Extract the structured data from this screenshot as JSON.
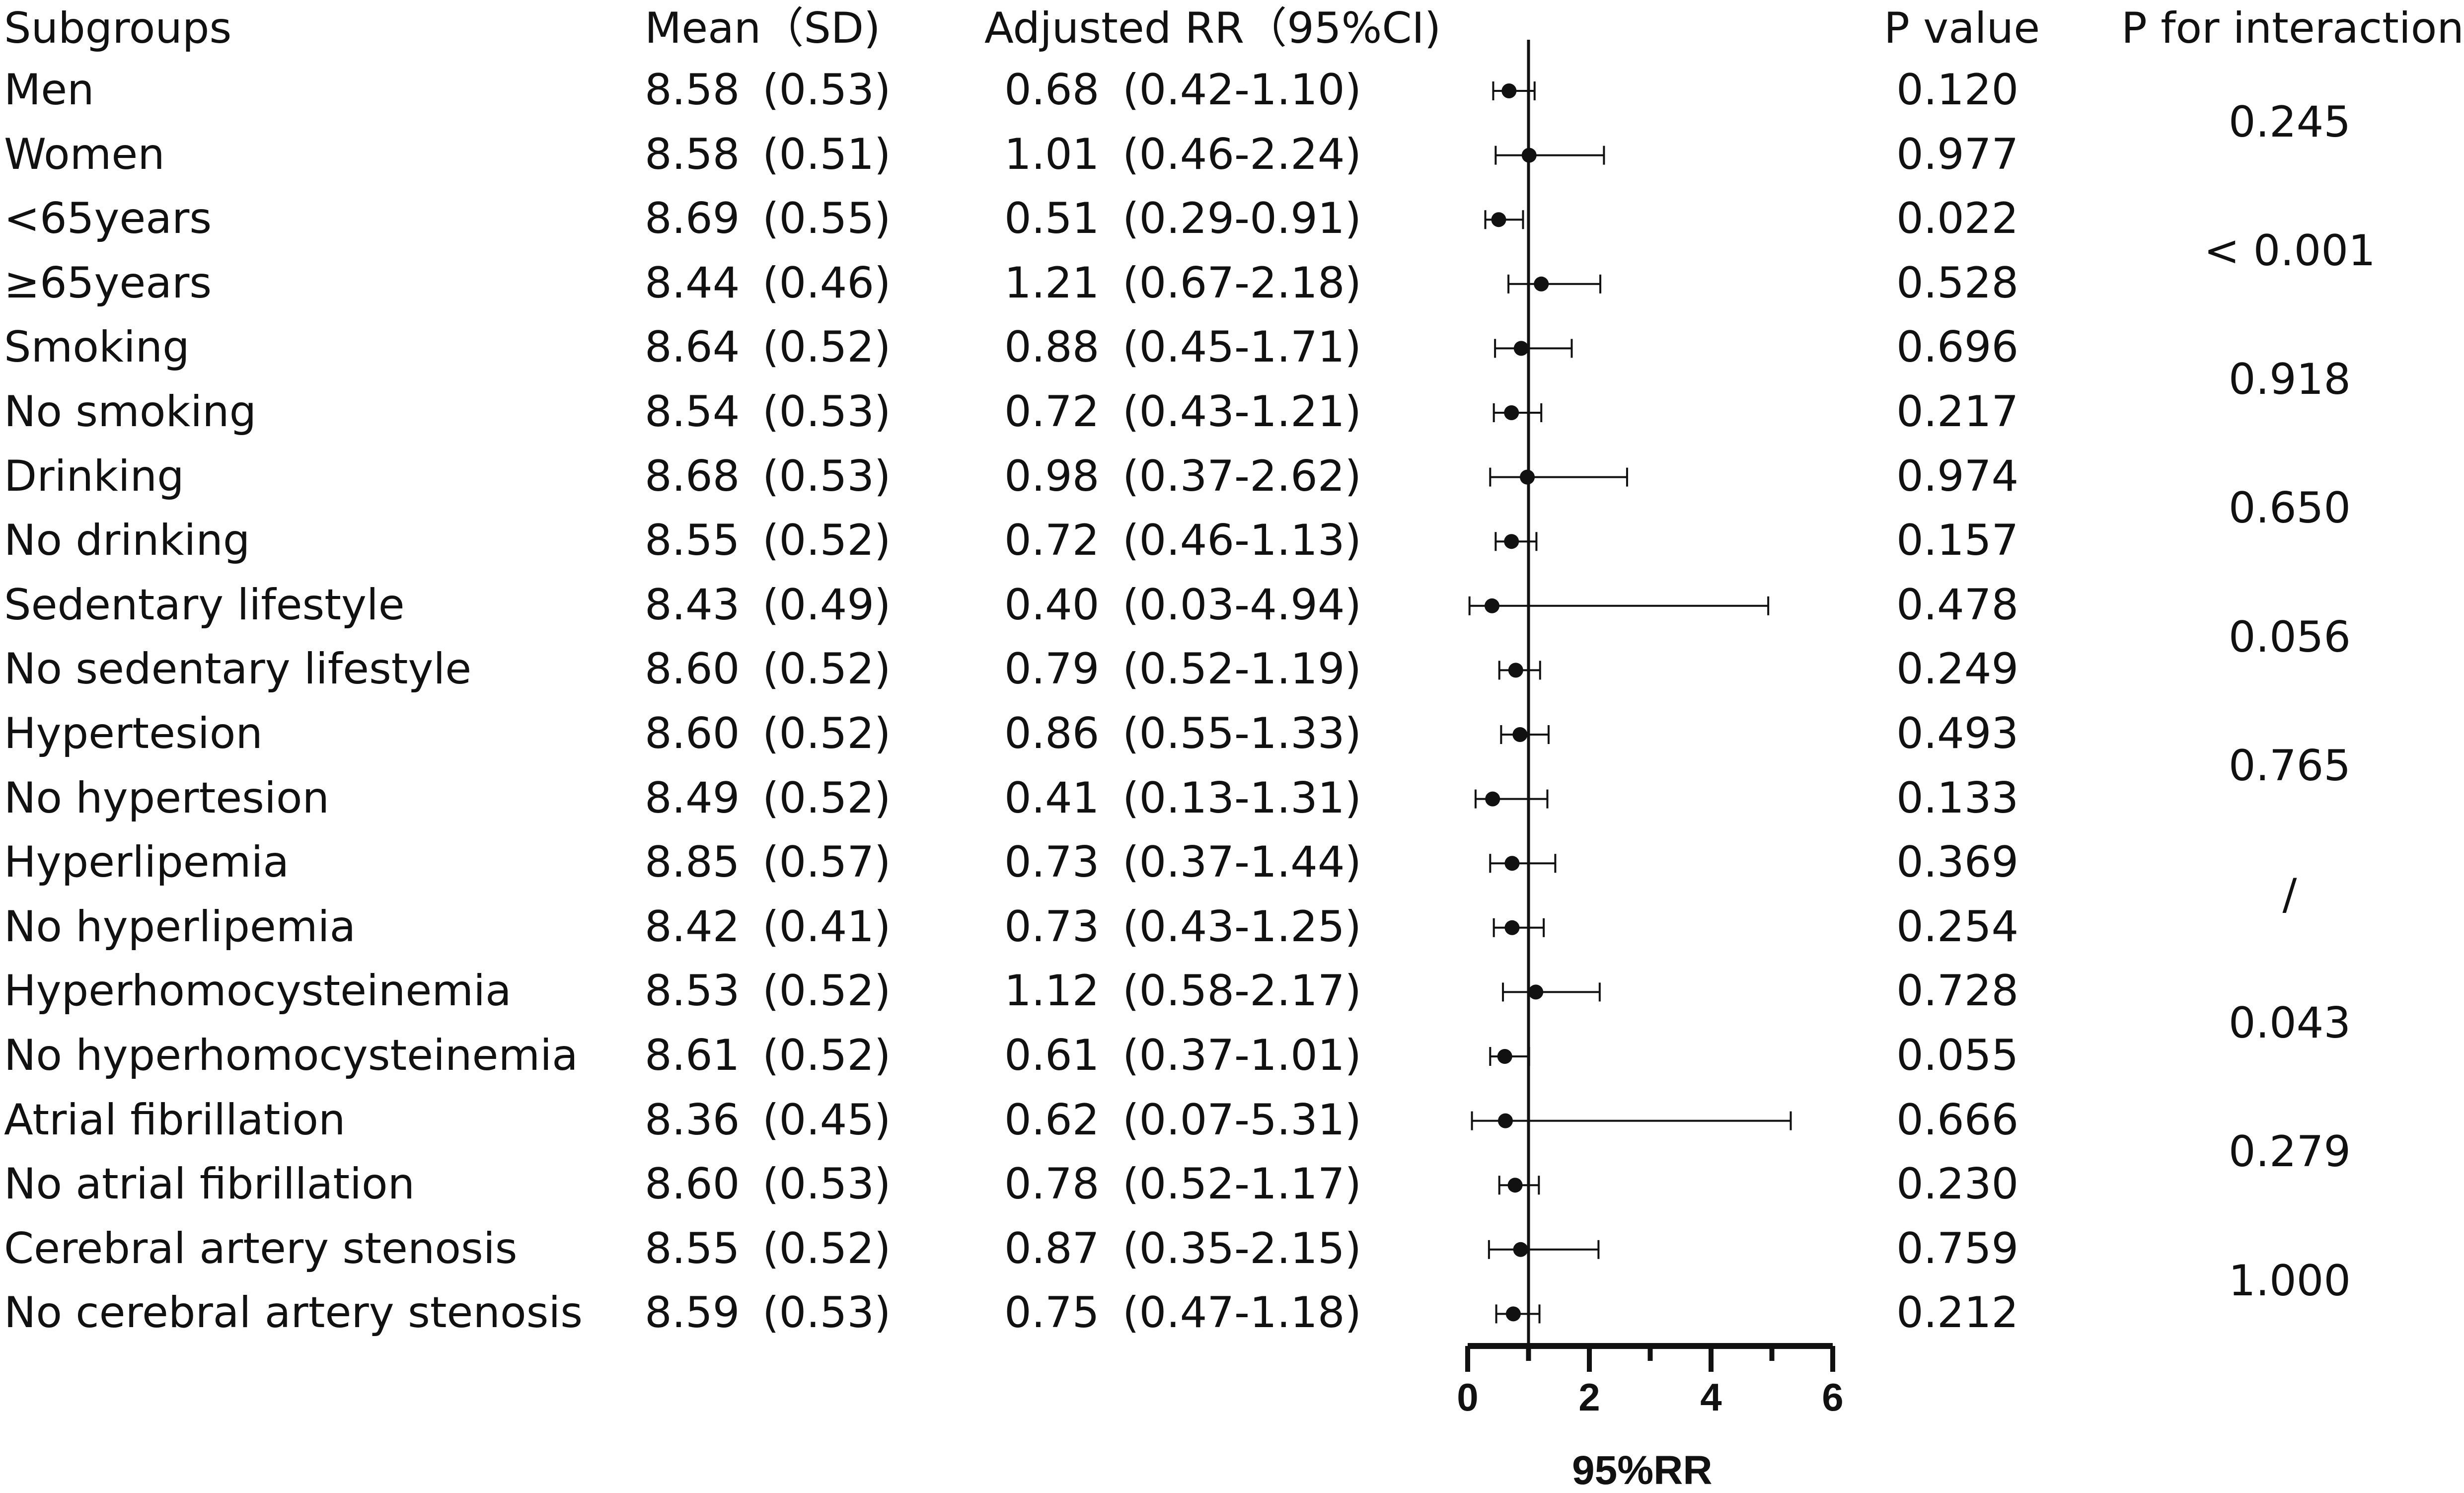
{
  "headers": {
    "subgroups": "Subgroups",
    "mean_sd": "Mean（SD)",
    "adjusted_rr": "Adjusted RR（95%CI)",
    "p_value": "P value",
    "p_interaction": "P for interaction"
  },
  "rows": [
    {
      "label": "Men",
      "mean": "8.58",
      "sd": "(0.53)",
      "rr": "0.68",
      "ci": "(0.42-1.10)",
      "p": "0.120"
    },
    {
      "label": "Women",
      "mean": "8.58",
      "sd": "(0.51)",
      "rr": "1.01",
      "ci": "(0.46-2.24)",
      "p": "0.977"
    },
    {
      "label": "<65years",
      "mean": "8.69",
      "sd": "(0.55)",
      "rr": "0.51",
      "ci": "(0.29-0.91)",
      "p": "0.022"
    },
    {
      "label": "≥65years",
      "mean": "8.44",
      "sd": "(0.46)",
      "rr": "1.21",
      "ci": "(0.67-2.18)",
      "p": "0.528"
    },
    {
      "label": "Smoking",
      "mean": "8.64",
      "sd": "(0.52)",
      "rr": "0.88",
      "ci": "(0.45-1.71)",
      "p": "0.696"
    },
    {
      "label": "No smoking",
      "mean": "8.54",
      "sd": "(0.53)",
      "rr": "0.72",
      "ci": "(0.43-1.21)",
      "p": "0.217"
    },
    {
      "label": "Drinking",
      "mean": "8.68",
      "sd": "(0.53)",
      "rr": "0.98",
      "ci": "(0.37-2.62)",
      "p": "0.974"
    },
    {
      "label": "No drinking",
      "mean": "8.55",
      "sd": "(0.52)",
      "rr": "0.72",
      "ci": "(0.46-1.13)",
      "p": "0.157"
    },
    {
      "label": "Sedentary lifestyle",
      "mean": "8.43",
      "sd": "(0.49)",
      "rr": "0.40",
      "ci": "(0.03-4.94)",
      "p": "0.478"
    },
    {
      "label": "No sedentary lifestyle",
      "mean": "8.60",
      "sd": "(0.52)",
      "rr": "0.79",
      "ci": "(0.52-1.19)",
      "p": "0.249"
    },
    {
      "label": "Hypertesion",
      "mean": "8.60",
      "sd": "(0.52)",
      "rr": "0.86",
      "ci": "(0.55-1.33)",
      "p": "0.493"
    },
    {
      "label": "No hypertesion",
      "mean": "8.49",
      "sd": "(0.52)",
      "rr": "0.41",
      "ci": "(0.13-1.31)",
      "p": "0.133"
    },
    {
      "label": "Hyperlipemia",
      "mean": "8.85",
      "sd": "(0.57)",
      "rr": "0.73",
      "ci": "(0.37-1.44)",
      "p": "0.369"
    },
    {
      "label": "No hyperlipemia",
      "mean": "8.42",
      "sd": "(0.41)",
      "rr": "0.73",
      "ci": "(0.43-1.25)",
      "p": "0.254"
    },
    {
      "label": "Hyperhomocysteinemia",
      "mean": "8.53",
      "sd": "(0.52)",
      "rr": "1.12",
      "ci": "(0.58-2.17)",
      "p": "0.728"
    },
    {
      "label": "No hyperhomocysteinemia",
      "mean": "8.61",
      "sd": "(0.52)",
      "rr": "0.61",
      "ci": "(0.37-1.01)",
      "p": "0.055"
    },
    {
      "label": "Atrial fibrillation",
      "mean": "8.36",
      "sd": "(0.45)",
      "rr": "0.62",
      "ci": "(0.07-5.31)",
      "p": "0.666"
    },
    {
      "label": "No atrial fibrillation",
      "mean": "8.60",
      "sd": "(0.53)",
      "rr": "0.78",
      "ci": "(0.52-1.17)",
      "p": "0.230"
    },
    {
      "label": "Cerebral artery stenosis",
      "mean": "8.55",
      "sd": "(0.52)",
      "rr": "0.87",
      "ci": "(0.35-2.15)",
      "p": "0.759"
    },
    {
      "label": "No cerebral artery stenosis",
      "mean": "8.59",
      "sd": "(0.53)",
      "rr": "0.75",
      "ci": "(0.47-1.18)",
      "p": "0.212"
    }
  ],
  "interactions": [
    "0.245",
    "< 0.001",
    "0.918",
    "0.650",
    "0.056",
    "0.765",
    "/",
    "0.043",
    "0.279",
    "1.000"
  ],
  "chart_data": {
    "type": "forest",
    "xlabel": "95%RR",
    "xlim": [
      0,
      6
    ],
    "xticks": [
      "0",
      "2",
      "4",
      "6"
    ],
    "reference_line": 1,
    "categories": [
      "Men",
      "Women",
      "<65years",
      "≥65years",
      "Smoking",
      "No smoking",
      "Drinking",
      "No drinking",
      "Sedentary lifestyle",
      "No sedentary lifestyle",
      "Hypertesion",
      "No hypertesion",
      "Hyperlipemia",
      "No hyperlipemia",
      "Hyperhomocysteinemia",
      "No hyperhomocysteinemia",
      "Atrial fibrillation",
      "No atrial fibrillation",
      "Cerebral artery stenosis",
      "No cerebral artery stenosis"
    ],
    "estimates": [
      0.68,
      1.01,
      0.51,
      1.21,
      0.88,
      0.72,
      0.98,
      0.72,
      0.4,
      0.79,
      0.86,
      0.41,
      0.73,
      0.73,
      1.12,
      0.61,
      0.62,
      0.78,
      0.87,
      0.75
    ],
    "lower": [
      0.42,
      0.46,
      0.29,
      0.67,
      0.45,
      0.43,
      0.37,
      0.46,
      0.03,
      0.52,
      0.55,
      0.13,
      0.37,
      0.43,
      0.58,
      0.37,
      0.07,
      0.52,
      0.35,
      0.47
    ],
    "upper": [
      1.1,
      2.24,
      0.91,
      2.18,
      1.71,
      1.21,
      2.62,
      1.13,
      4.94,
      1.19,
      1.33,
      1.31,
      1.44,
      1.25,
      2.17,
      1.01,
      5.31,
      1.17,
      2.15,
      1.18
    ],
    "colors": {
      "ink": "#111111",
      "background": "#ffffff"
    }
  }
}
